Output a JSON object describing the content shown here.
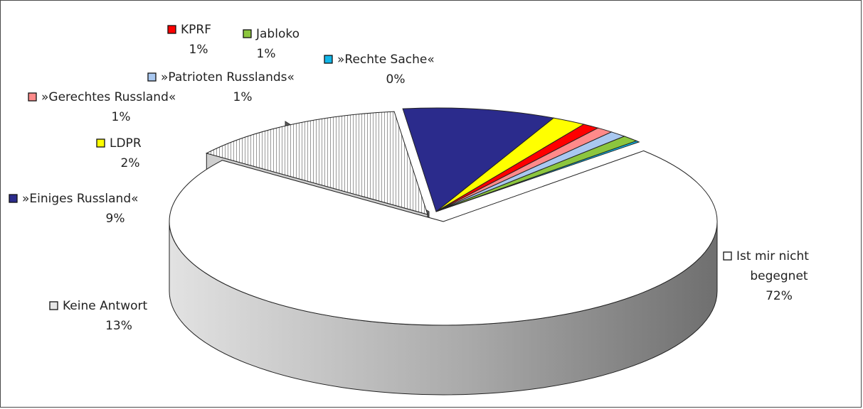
{
  "chart_data": {
    "type": "pie",
    "three_d": true,
    "exploded": true,
    "slices": [
      {
        "label": "Ist mir nicht begegnet",
        "label_lines": [
          "Ist mir nicht",
          "begegnet"
        ],
        "value": 72,
        "value_text": "72%",
        "color": "#ffffff"
      },
      {
        "label": "Keine Antwort",
        "label_lines": [
          "Keine Antwort"
        ],
        "value": 13,
        "value_text": "13%",
        "color": "#e6e6e6"
      },
      {
        "label": "»Einiges Russland«",
        "label_lines": [
          "»Einiges Russland«"
        ],
        "value": 9,
        "value_text": "9%",
        "color": "#2b2b8c"
      },
      {
        "label": "LDPR",
        "label_lines": [
          "LDPR"
        ],
        "value": 2,
        "value_text": "2%",
        "color": "#ffff00"
      },
      {
        "label": "KPRF",
        "label_lines": [
          "KPRF"
        ],
        "value": 1,
        "value_text": "1%",
        "color": "#ff0000"
      },
      {
        "label": "»Gerechtes Russland«",
        "label_lines": [
          "»Gerechtes Russland«"
        ],
        "value": 1,
        "value_text": "1%",
        "color": "#ff8a8a"
      },
      {
        "label": "»Patrioten Russlands«",
        "label_lines": [
          "»Patrioten Russlands«"
        ],
        "value": 1,
        "value_text": "1%",
        "color": "#a9c8f0"
      },
      {
        "label": "Jabloko",
        "label_lines": [
          "Jabloko"
        ],
        "value": 1,
        "value_text": "1%",
        "color": "#8cc63e"
      },
      {
        "label": "»Rechte Sache«",
        "label_lines": [
          "»Rechte Sache«"
        ],
        "value": 0,
        "value_text": "0%",
        "color": "#12b6e8"
      }
    ]
  }
}
